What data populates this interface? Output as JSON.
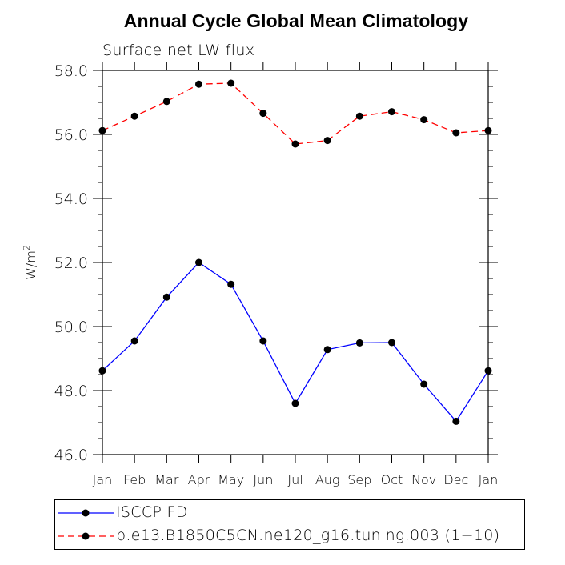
{
  "title": "Annual Cycle Global Mean Climatology",
  "subtitle": "Surface net LW flux",
  "chart_data": {
    "type": "line",
    "categories": [
      "Jan",
      "Feb",
      "Mar",
      "Apr",
      "May",
      "Jun",
      "Jul",
      "Aug",
      "Sep",
      "Oct",
      "Nov",
      "Dec",
      "Jan"
    ],
    "ylabel": "W/m",
    "ylabel_sup": "2",
    "ylim": [
      46.0,
      58.0
    ],
    "yticks": [
      "46.0",
      "48.0",
      "50.0",
      "52.0",
      "54.0",
      "56.0",
      "58.0"
    ],
    "ytick_values": [
      46.0,
      48.0,
      50.0,
      52.0,
      54.0,
      56.0,
      58.0
    ],
    "series": [
      {
        "name": "ISCCP FD",
        "color": "#0000ff",
        "dash": "solid",
        "values": [
          48.62,
          49.55,
          50.92,
          52.0,
          51.32,
          49.55,
          47.6,
          49.28,
          49.49,
          49.5,
          48.2,
          47.04,
          48.62
        ]
      },
      {
        "name": "b.e13.B1850C5CN.ne120_g16.tuning.003 (1−10)",
        "color": "#ff0000",
        "dash": "dashed",
        "values": [
          56.12,
          56.57,
          57.03,
          57.57,
          57.6,
          56.66,
          55.7,
          55.81,
          56.57,
          56.71,
          56.46,
          56.05,
          56.12
        ]
      }
    ],
    "grid": false,
    "legend_position": "bottom"
  }
}
